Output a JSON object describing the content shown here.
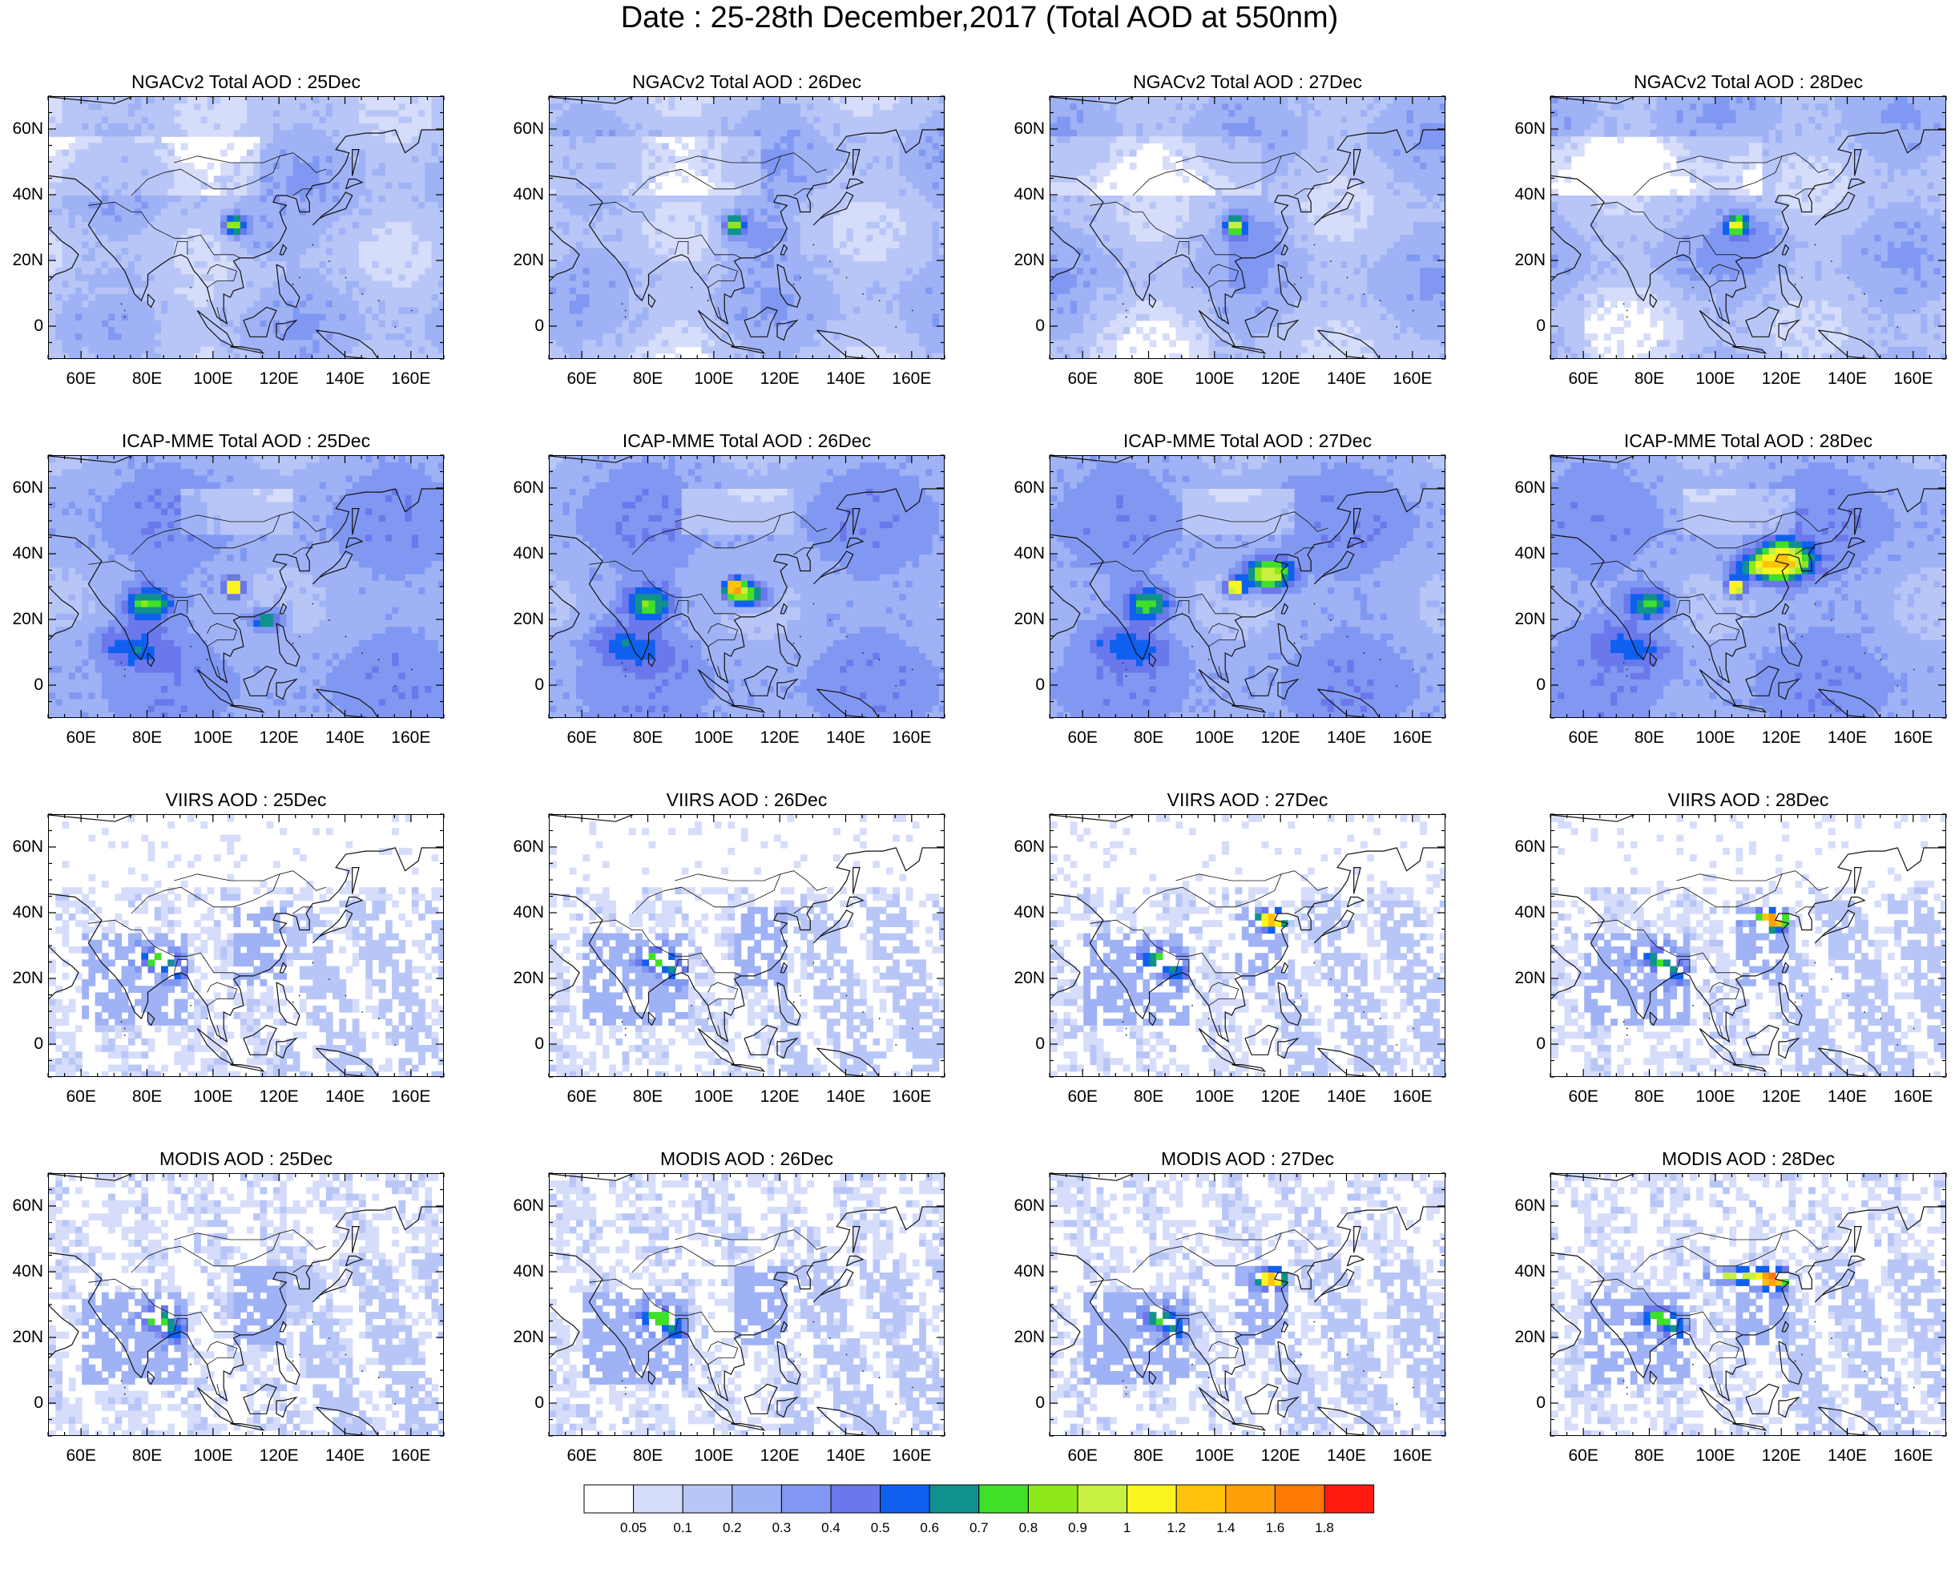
{
  "title": "Date : 25-28th December,2017 (Total AOD at 550nm)",
  "rows": [
    {
      "source": "NGACv2",
      "panels": [
        "NGACv2 Total AOD : 25Dec",
        "NGACv2 Total AOD : 26Dec",
        "NGACv2 Total AOD : 27Dec",
        "NGACv2 Total AOD : 28Dec"
      ]
    },
    {
      "source": "ICAP-MME",
      "panels": [
        "ICAP-MME Total AOD : 25Dec",
        "ICAP-MME Total AOD : 26Dec",
        "ICAP-MME Total AOD : 27Dec",
        "ICAP-MME Total AOD : 28Dec"
      ]
    },
    {
      "source": "VIIRS",
      "panels": [
        "VIIRS AOD : 25Dec",
        "VIIRS AOD : 26Dec",
        "VIIRS AOD : 27Dec",
        "VIIRS AOD : 28Dec"
      ]
    },
    {
      "source": "MODIS",
      "panels": [
        "MODIS AOD : 25Dec",
        "MODIS AOD : 26Dec",
        "MODIS AOD : 27Dec",
        "MODIS AOD : 28Dec"
      ]
    }
  ],
  "map": {
    "lon_range": [
      50,
      170
    ],
    "lat_range": [
      -10,
      70
    ],
    "x_ticks": [
      "60E",
      "80E",
      "100E",
      "120E",
      "140E",
      "160E"
    ],
    "x_tick_values": [
      60,
      80,
      100,
      120,
      140,
      160
    ],
    "y_ticks": [
      "60N",
      "40N",
      "20N",
      "0"
    ],
    "y_tick_values": [
      60,
      40,
      20,
      0
    ]
  },
  "colorbar": {
    "labels": [
      "0.05",
      "0.1",
      "0.2",
      "0.3",
      "0.4",
      "0.5",
      "0.6",
      "0.7",
      "0.8",
      "0.9",
      "1",
      "1.2",
      "1.4",
      "1.6",
      "1.8"
    ],
    "colors": [
      "#ffffff",
      "#d6ddfb",
      "#b8c6f7",
      "#9fb2f5",
      "#8198f2",
      "#6a78ec",
      "#1060f0",
      "#11918d",
      "#3fe02a",
      "#8fe81a",
      "#c8f040",
      "#fbf51f",
      "#ffc30c",
      "#ff9f0a",
      "#ff7a06",
      "#ff1a10"
    ]
  }
}
